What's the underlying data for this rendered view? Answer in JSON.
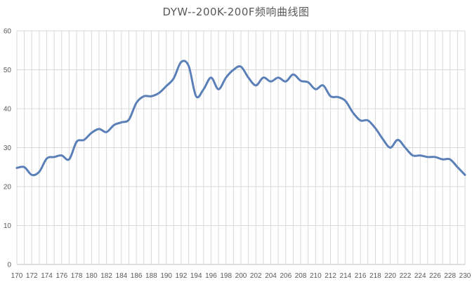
{
  "chart_data": {
    "type": "line",
    "title": "DYW--200K-200F频响曲线图",
    "xlabel": "",
    "ylabel": "",
    "x": [
      170,
      171,
      172,
      173,
      174,
      175,
      176,
      177,
      178,
      179,
      180,
      181,
      182,
      183,
      184,
      185,
      186,
      187,
      188,
      189,
      190,
      191,
      192,
      193,
      194,
      195,
      196,
      197,
      198,
      199,
      200,
      201,
      202,
      203,
      204,
      205,
      206,
      207,
      208,
      209,
      210,
      211,
      212,
      213,
      214,
      215,
      216,
      217,
      218,
      219,
      220,
      221,
      222,
      223,
      224,
      225,
      226,
      227,
      228,
      229,
      230
    ],
    "series": [
      {
        "values": [
          24.8,
          25.0,
          23.0,
          23.8,
          27.2,
          27.6,
          28.0,
          27.0,
          31.5,
          32.0,
          33.8,
          34.8,
          34.0,
          35.8,
          36.5,
          37.2,
          41.5,
          43.2,
          43.2,
          44.0,
          45.8,
          47.8,
          52.0,
          51.0,
          43.2,
          45.0,
          48.0,
          45.0,
          48.0,
          50.0,
          50.8,
          48.0,
          46.0,
          48.0,
          47.0,
          48.0,
          47.0,
          48.8,
          47.2,
          46.8,
          45.0,
          46.0,
          43.2,
          43.0,
          42.0,
          39.0,
          37.0,
          37.0,
          35.0,
          32.2,
          30.0,
          32.0,
          30.0,
          28.0,
          28.0,
          27.6,
          27.6,
          27.0,
          27.0,
          25.0,
          23.0
        ]
      }
    ],
    "ylim": [
      0,
      60
    ],
    "yticks": [
      0,
      10,
      20,
      30,
      40,
      50,
      60
    ],
    "xticks": [
      170,
      172,
      174,
      176,
      178,
      180,
      182,
      184,
      186,
      188,
      190,
      192,
      194,
      196,
      198,
      200,
      202,
      204,
      206,
      208,
      210,
      212,
      214,
      216,
      218,
      220,
      222,
      224,
      226,
      228,
      230
    ],
    "grid": true,
    "legend": "none",
    "colors": {
      "line": "#5B80B8",
      "grid": "#D9D9D9",
      "axis": "#BFBFBF",
      "text": "#595959"
    }
  }
}
